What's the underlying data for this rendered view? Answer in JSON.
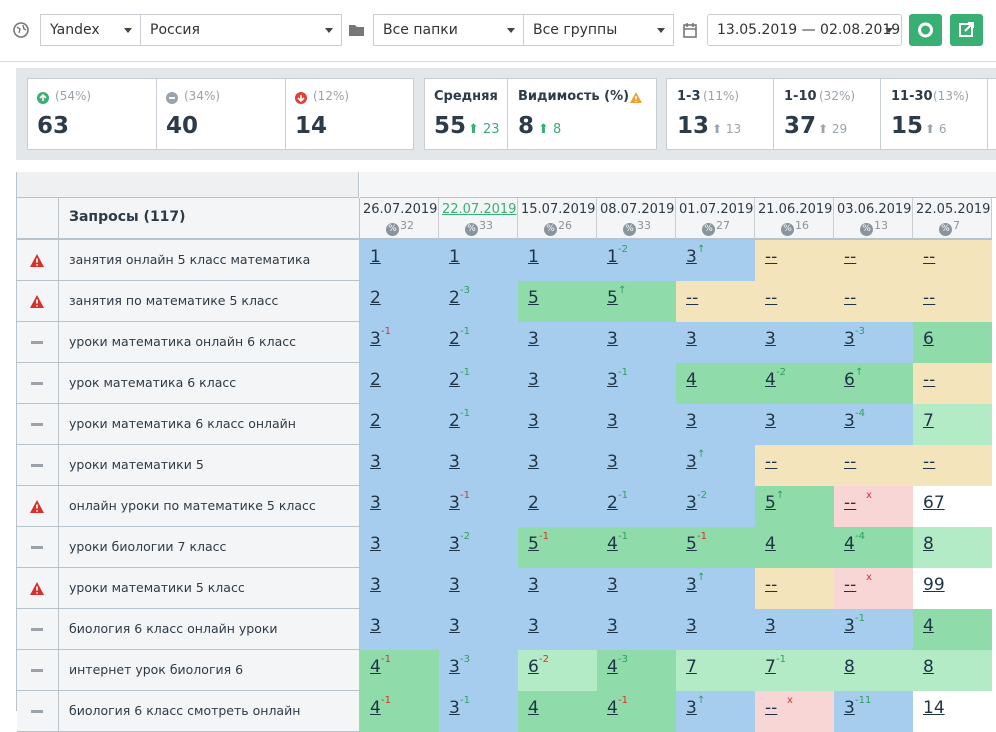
{
  "toolbar": {
    "engine": "Yandex",
    "region": "Россия",
    "folders": "Все папки",
    "groups": "Все группы",
    "period": "13.05.2019 — 02.08.2019"
  },
  "stats": [
    {
      "icon": "up",
      "pct": "(54%)",
      "value": 63
    },
    {
      "icon": "same",
      "pct": "(34%)",
      "value": 40
    },
    {
      "icon": "down",
      "pct": "(12%)",
      "value": 14
    }
  ],
  "averages": {
    "avg_label": "Средняя",
    "avg": 55,
    "avg_change": 23,
    "vis_label": "Видимость (%)",
    "vis": 8,
    "vis_change": 8
  },
  "ranges": [
    {
      "label": "1-3",
      "pct": "(11%)",
      "value": 13,
      "prev": 13
    },
    {
      "label": "1-10",
      "pct": "(32%)",
      "value": 37,
      "prev": 29
    },
    {
      "label": "11-30",
      "pct": "(13%)",
      "value": 15,
      "prev": 6
    }
  ],
  "table": {
    "header": "Запросы (117)",
    "highlight_date": 1,
    "dates": [
      {
        "date": "26.07.2019",
        "pct": 32
      },
      {
        "date": "22.07.2019",
        "pct": 33
      },
      {
        "date": "15.07.2019",
        "pct": 26
      },
      {
        "date": "08.07.2019",
        "pct": 33
      },
      {
        "date": "01.07.2019",
        "pct": 27
      },
      {
        "date": "21.06.2019",
        "pct": 16
      },
      {
        "date": "03.06.2019",
        "pct": 13
      },
      {
        "date": "22.05.2019",
        "pct": 7
      }
    ],
    "rows": [
      {
        "icon": "warn",
        "query": "занятия онлайн 5 класс математика",
        "cells": [
          {
            "v": 1,
            "bg": "blue"
          },
          {
            "v": 1,
            "bg": "blue"
          },
          {
            "v": 1,
            "bg": "blue"
          },
          {
            "v": 1,
            "d": "-2",
            "dc": "green",
            "bg": "blue"
          },
          {
            "v": 3,
            "d": "↑",
            "dc": "green",
            "bg": "blue"
          },
          {
            "v": "--",
            "bg": "yellow"
          },
          {
            "v": "--",
            "bg": "yellow"
          },
          {
            "v": "--",
            "bg": "yellow"
          }
        ]
      },
      {
        "icon": "warn",
        "query": "занятия по математике 5 класс",
        "cells": [
          {
            "v": 2,
            "bg": "blue"
          },
          {
            "v": 2,
            "d": "-3",
            "dc": "green",
            "bg": "blue"
          },
          {
            "v": 5,
            "bg": "green"
          },
          {
            "v": 5,
            "d": "↑",
            "dc": "green",
            "bg": "green"
          },
          {
            "v": "--",
            "bg": "yellow"
          },
          {
            "v": "--",
            "bg": "yellow"
          },
          {
            "v": "--",
            "bg": "yellow"
          },
          {
            "v": "--",
            "bg": "yellow"
          }
        ]
      },
      {
        "icon": "dash",
        "query": "уроки математика онлайн 6 класс",
        "cells": [
          {
            "v": 3,
            "d": "-1",
            "dc": "red",
            "bg": "blue"
          },
          {
            "v": 2,
            "d": "-1",
            "dc": "green",
            "bg": "blue"
          },
          {
            "v": 3,
            "bg": "blue"
          },
          {
            "v": 3,
            "bg": "blue"
          },
          {
            "v": 3,
            "bg": "blue"
          },
          {
            "v": 3,
            "bg": "blue"
          },
          {
            "v": 3,
            "d": "-3",
            "dc": "green",
            "bg": "blue"
          },
          {
            "v": 6,
            "bg": "green"
          }
        ]
      },
      {
        "icon": "dash",
        "query": "урок математика 6 класс",
        "cells": [
          {
            "v": 2,
            "bg": "blue"
          },
          {
            "v": 2,
            "d": "-1",
            "dc": "green",
            "bg": "blue"
          },
          {
            "v": 3,
            "bg": "blue"
          },
          {
            "v": 3,
            "d": "-1",
            "dc": "green",
            "bg": "blue"
          },
          {
            "v": 4,
            "bg": "green"
          },
          {
            "v": 4,
            "d": "-2",
            "dc": "green",
            "bg": "green"
          },
          {
            "v": 6,
            "d": "↑",
            "dc": "green",
            "bg": "green"
          },
          {
            "v": "--",
            "bg": "yellow"
          }
        ]
      },
      {
        "icon": "dash",
        "query": "уроки математика 6 класс онлайн",
        "cells": [
          {
            "v": 2,
            "bg": "blue"
          },
          {
            "v": 2,
            "d": "-1",
            "dc": "green",
            "bg": "blue"
          },
          {
            "v": 3,
            "bg": "blue"
          },
          {
            "v": 3,
            "bg": "blue"
          },
          {
            "v": 3,
            "bg": "blue"
          },
          {
            "v": 3,
            "bg": "blue"
          },
          {
            "v": 3,
            "d": "-4",
            "dc": "green",
            "bg": "blue"
          },
          {
            "v": 7,
            "bg": "lightgreen"
          }
        ]
      },
      {
        "icon": "dash",
        "query": "уроки математики 5",
        "cells": [
          {
            "v": 3,
            "bg": "blue"
          },
          {
            "v": 3,
            "bg": "blue"
          },
          {
            "v": 3,
            "bg": "blue"
          },
          {
            "v": 3,
            "bg": "blue"
          },
          {
            "v": 3,
            "d": "↑",
            "dc": "green",
            "bg": "blue"
          },
          {
            "v": "--",
            "bg": "yellow"
          },
          {
            "v": "--",
            "bg": "yellow"
          },
          {
            "v": "--",
            "bg": "yellow"
          }
        ]
      },
      {
        "icon": "warn",
        "query": "онлайн уроки по математике 5 класс",
        "cells": [
          {
            "v": 3,
            "bg": "blue"
          },
          {
            "v": 3,
            "d": "-1",
            "dc": "red",
            "bg": "blue"
          },
          {
            "v": 2,
            "bg": "blue"
          },
          {
            "v": 2,
            "d": "-1",
            "dc": "green",
            "bg": "blue"
          },
          {
            "v": 3,
            "d": "-2",
            "dc": "green",
            "bg": "blue"
          },
          {
            "v": 5,
            "d": "↑",
            "dc": "green",
            "bg": "green"
          },
          {
            "v": "--",
            "d": "x",
            "dc": "red",
            "bg": "pink"
          },
          {
            "v": 67,
            "bg": "white"
          }
        ]
      },
      {
        "icon": "dash",
        "query": "уроки биологии 7 класс",
        "cells": [
          {
            "v": 3,
            "bg": "blue"
          },
          {
            "v": 3,
            "d": "-2",
            "dc": "green",
            "bg": "blue"
          },
          {
            "v": 5,
            "d": "-1",
            "dc": "red",
            "bg": "green"
          },
          {
            "v": 4,
            "d": "-1",
            "dc": "green",
            "bg": "green"
          },
          {
            "v": 5,
            "d": "-1",
            "dc": "red",
            "bg": "green"
          },
          {
            "v": 4,
            "bg": "green"
          },
          {
            "v": 4,
            "d": "-4",
            "dc": "green",
            "bg": "green"
          },
          {
            "v": 8,
            "bg": "lightgreen"
          }
        ]
      },
      {
        "icon": "warn",
        "query": "уроки математики 5 класс",
        "cells": [
          {
            "v": 3,
            "bg": "blue"
          },
          {
            "v": 3,
            "bg": "blue"
          },
          {
            "v": 3,
            "bg": "blue"
          },
          {
            "v": 3,
            "bg": "blue"
          },
          {
            "v": 3,
            "d": "↑",
            "dc": "green",
            "bg": "blue"
          },
          {
            "v": "--",
            "bg": "yellow"
          },
          {
            "v": "--",
            "d": "x",
            "dc": "red",
            "bg": "pink"
          },
          {
            "v": 99,
            "bg": "white"
          }
        ]
      },
      {
        "icon": "dash",
        "query": "биология 6 класс онлайн уроки",
        "cells": [
          {
            "v": 3,
            "bg": "blue"
          },
          {
            "v": 3,
            "bg": "blue"
          },
          {
            "v": 3,
            "bg": "blue"
          },
          {
            "v": 3,
            "bg": "blue"
          },
          {
            "v": 3,
            "bg": "blue"
          },
          {
            "v": 3,
            "bg": "blue"
          },
          {
            "v": 3,
            "d": "-1",
            "dc": "green",
            "bg": "blue"
          },
          {
            "v": 4,
            "bg": "green"
          }
        ]
      },
      {
        "icon": "dash",
        "query": "интернет урок биология 6",
        "cells": [
          {
            "v": 4,
            "d": "-1",
            "dc": "red",
            "bg": "green"
          },
          {
            "v": 3,
            "d": "-3",
            "dc": "green",
            "bg": "blue"
          },
          {
            "v": 6,
            "d": "-2",
            "dc": "red",
            "bg": "lightgreen"
          },
          {
            "v": 4,
            "d": "-3",
            "dc": "green",
            "bg": "green"
          },
          {
            "v": 7,
            "bg": "lightgreen"
          },
          {
            "v": 7,
            "d": "-1",
            "dc": "green",
            "bg": "lightgreen"
          },
          {
            "v": 8,
            "bg": "lightgreen"
          },
          {
            "v": 8,
            "bg": "lightgreen"
          }
        ]
      },
      {
        "icon": "dash",
        "query": "биология 6 класс смотреть онлайн",
        "cells": [
          {
            "v": 4,
            "d": "-1",
            "dc": "red",
            "bg": "green"
          },
          {
            "v": 3,
            "d": "-1",
            "dc": "green",
            "bg": "blue"
          },
          {
            "v": 4,
            "bg": "green"
          },
          {
            "v": 4,
            "d": "-1",
            "dc": "red",
            "bg": "green"
          },
          {
            "v": 3,
            "d": "↑",
            "dc": "green",
            "bg": "blue"
          },
          {
            "v": "--",
            "d": "x",
            "dc": "red",
            "bg": "pink"
          },
          {
            "v": 3,
            "d": "-11",
            "dc": "green",
            "bg": "blue"
          },
          {
            "v": 14,
            "bg": "white"
          }
        ]
      }
    ]
  }
}
